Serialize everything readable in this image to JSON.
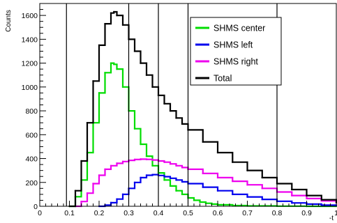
{
  "chart_data": {
    "type": "line",
    "title": "",
    "xlabel": "-t",
    "ylabel": "Counts",
    "xlim": [
      0,
      1
    ],
    "ylim": [
      0,
      1700
    ],
    "x_ticks": [
      0,
      0.1,
      0.2,
      0.3,
      0.4,
      0.5,
      0.6,
      0.7,
      0.8,
      0.9,
      1
    ],
    "x_tick_labels": [
      "0",
      "0.1",
      "0.2",
      "0.3",
      "0.4",
      "0.5",
      "0.6",
      "0.7",
      "0.8",
      "0.9",
      "1"
    ],
    "y_ticks": [
      0,
      200,
      400,
      600,
      800,
      1000,
      1200,
      1400,
      1600
    ],
    "y_tick_labels": [
      "0",
      "200",
      "400",
      "600",
      "800",
      "1000",
      "1200",
      "1400",
      "1600"
    ],
    "vertical_lines": [
      0.09,
      0.3,
      0.4,
      0.5,
      0.8
    ],
    "legend": "top-right",
    "grid": false,
    "series": [
      {
        "name": "SHMS center",
        "color": "#00dd00",
        "x": [
          0.1,
          0.12,
          0.14,
          0.16,
          0.18,
          0.2,
          0.22,
          0.24,
          0.25,
          0.26,
          0.28,
          0.3,
          0.32,
          0.34,
          0.36,
          0.38,
          0.4,
          0.42,
          0.44,
          0.46,
          0.48,
          0.5,
          0.52,
          0.54,
          0.56,
          0.58,
          0.6,
          0.65,
          0.7,
          0.8,
          0.9,
          1.0
        ],
        "y": [
          0,
          80,
          220,
          450,
          700,
          950,
          1120,
          1200,
          1190,
          1150,
          1000,
          800,
          650,
          520,
          420,
          340,
          280,
          220,
          170,
          130,
          100,
          70,
          50,
          35,
          25,
          18,
          12,
          6,
          3,
          1,
          0,
          0
        ]
      },
      {
        "name": "SHMS left",
        "color": "#0000ee",
        "x": [
          0.2,
          0.22,
          0.24,
          0.26,
          0.28,
          0.3,
          0.32,
          0.34,
          0.36,
          0.38,
          0.4,
          0.42,
          0.44,
          0.46,
          0.48,
          0.5,
          0.55,
          0.6,
          0.65,
          0.7,
          0.75,
          0.8,
          0.85,
          0.9,
          0.95,
          1.0
        ],
        "y": [
          0,
          10,
          30,
          60,
          100,
          150,
          200,
          240,
          260,
          265,
          258,
          248,
          235,
          220,
          205,
          190,
          160,
          130,
          100,
          78,
          58,
          42,
          28,
          18,
          10,
          5
        ]
      },
      {
        "name": "SHMS right",
        "color": "#ee00ee",
        "x": [
          0.12,
          0.14,
          0.16,
          0.18,
          0.2,
          0.22,
          0.24,
          0.26,
          0.28,
          0.3,
          0.32,
          0.34,
          0.36,
          0.38,
          0.4,
          0.42,
          0.44,
          0.46,
          0.48,
          0.5,
          0.55,
          0.6,
          0.65,
          0.7,
          0.75,
          0.8,
          0.85,
          0.9,
          0.95,
          1.0
        ],
        "y": [
          0,
          40,
          110,
          190,
          260,
          310,
          340,
          360,
          375,
          385,
          392,
          395,
          393,
          388,
          380,
          370,
          355,
          340,
          325,
          310,
          275,
          240,
          210,
          180,
          150,
          120,
          90,
          65,
          45,
          30
        ]
      },
      {
        "name": "Total",
        "color": "#000000",
        "x": [
          0.1,
          0.12,
          0.14,
          0.16,
          0.18,
          0.2,
          0.22,
          0.24,
          0.25,
          0.26,
          0.28,
          0.3,
          0.32,
          0.34,
          0.36,
          0.38,
          0.4,
          0.42,
          0.44,
          0.46,
          0.48,
          0.5,
          0.55,
          0.6,
          0.65,
          0.7,
          0.75,
          0.8,
          0.85,
          0.9,
          0.95,
          1.0
        ],
        "y": [
          0,
          130,
          380,
          700,
          1050,
          1350,
          1530,
          1620,
          1630,
          1600,
          1520,
          1400,
          1300,
          1200,
          1100,
          1000,
          930,
          860,
          800,
          740,
          690,
          640,
          540,
          450,
          370,
          300,
          240,
          190,
          140,
          90,
          55,
          30
        ]
      }
    ]
  }
}
